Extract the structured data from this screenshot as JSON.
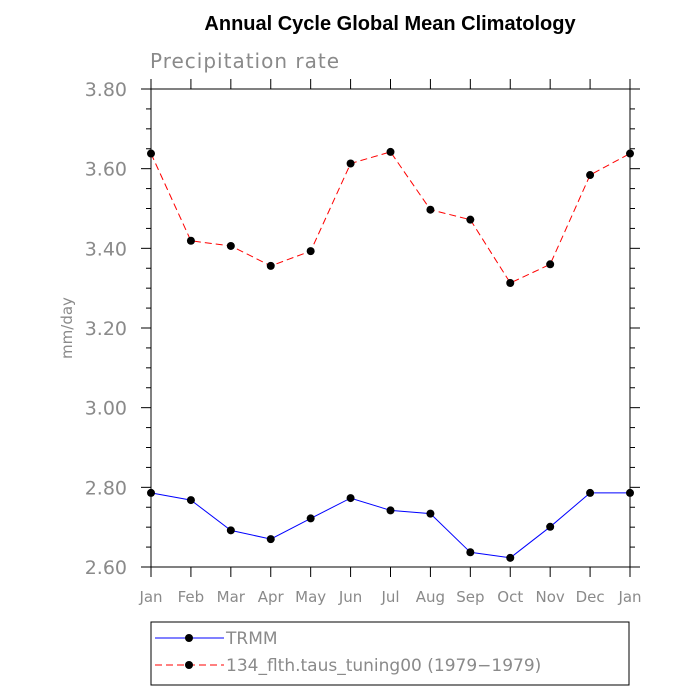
{
  "chart_data": {
    "type": "line",
    "title": "Annual Cycle Global Mean Climatology",
    "subtitle": "Precipitation rate",
    "xlabel": "",
    "ylabel": "mm/day",
    "categories": [
      "Jan",
      "Feb",
      "Mar",
      "Apr",
      "May",
      "Jun",
      "Jul",
      "Aug",
      "Sep",
      "Oct",
      "Nov",
      "Dec",
      "Jan"
    ],
    "ylim": [
      2.6,
      3.8
    ],
    "yticks": [
      "2.60",
      "2.80",
      "3.00",
      "3.20",
      "3.40",
      "3.60",
      "3.80"
    ],
    "grid": false,
    "legend_position": "bottom",
    "series": [
      {
        "name": "TRMM",
        "color": "#0000ff",
        "dash": "solid",
        "values": [
          2.786,
          2.768,
          2.692,
          2.67,
          2.722,
          2.773,
          2.742,
          2.734,
          2.637,
          2.623,
          2.701,
          2.786,
          2.786
        ]
      },
      {
        "name": "134_flth.taus_tuning00 (1979−1979)",
        "color": "#ff0000",
        "dash": "dashed",
        "values": [
          3.638,
          3.419,
          3.406,
          3.356,
          3.393,
          3.613,
          3.642,
          3.497,
          3.472,
          3.313,
          3.36,
          3.584,
          3.638
        ]
      }
    ]
  }
}
